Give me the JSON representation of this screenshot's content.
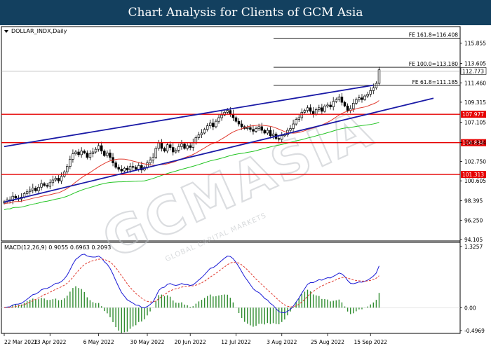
{
  "banner": {
    "title": "Chart Analysis for Clients of GCM Asia"
  },
  "watermark": {
    "text": "GCMASIA",
    "subtext": "GLOBAL CAPITAL MARKETS"
  },
  "chart_data": {
    "type": "candlestick",
    "symbol_label": "DOLLAR_INDX,Daily",
    "price_axis": {
      "range": [
        94.105,
        117.53
      ],
      "ticks": [
        "115.855",
        "113.605",
        "111.460",
        "109.315",
        "107.105",
        "104.834",
        "102.750",
        "100.605",
        "98.395",
        "96.250",
        "94.105"
      ]
    },
    "current_price": {
      "label": "112.773",
      "value": 112.773
    },
    "x_axis": {
      "ticks": [
        {
          "label": "22 Mar 2022",
          "index": 0
        },
        {
          "label": "13 Apr 2022",
          "index": 16
        },
        {
          "label": "6 May 2022",
          "index": 33
        },
        {
          "label": "30 May 2022",
          "index": 50
        },
        {
          "label": "20 Jun 2022",
          "index": 65
        },
        {
          "label": "12 Jul 2022",
          "index": 81
        },
        {
          "label": "3 Aug 2022",
          "index": 97
        },
        {
          "label": "25 Aug 2022",
          "index": 113
        },
        {
          "label": "15 Sep 2022",
          "index": 128
        }
      ]
    },
    "horizontal_levels": [
      {
        "label": "107.977",
        "value": 107.977,
        "color": "#e60000"
      },
      {
        "label": "104.834",
        "value": 104.834,
        "color": "#e60000"
      },
      {
        "label": "101.313",
        "value": 101.313,
        "color": "#e60000"
      }
    ],
    "fibonacci_levels": [
      {
        "label": "FE 161.8=116.408",
        "value": 116.408
      },
      {
        "label": "FE 100.0=113.180",
        "value": 113.18
      },
      {
        "label": "FE 61.8=111.185",
        "value": 111.185
      }
    ],
    "trendlines": [
      {
        "name": "upper-channel",
        "from": {
          "index": 0,
          "price": 104.4
        },
        "to": {
          "index": 129,
          "price": 111.2
        },
        "color": "#1a1aa6"
      },
      {
        "name": "lower-channel",
        "from": {
          "index": 0,
          "price": 98.25
        },
        "to": {
          "index": 150,
          "price": 109.75
        },
        "color": "#1a1aa6"
      }
    ],
    "closes": [
      98.3,
      98.5,
      98.4,
      98.9,
      98.7,
      98.6,
      98.8,
      99.2,
      99.4,
      99.6,
      99.8,
      99.5,
      99.9,
      100.3,
      100.1,
      100.0,
      100.4,
      100.7,
      100.9,
      100.6,
      101.1,
      101.6,
      102.2,
      103.0,
      103.6,
      103.8,
      103.5,
      103.9,
      103.7,
      103.2,
      103.6,
      103.8,
      104.1,
      104.5,
      103.9,
      103.4,
      103.7,
      103.2,
      102.6,
      102.1,
      101.9,
      101.7,
      102.0,
      101.8,
      102.2,
      102.1,
      101.9,
      102.3,
      101.8,
      102.1,
      102.6,
      102.9,
      103.2,
      104.2,
      104.8,
      104.2,
      103.9,
      104.6,
      104.3,
      103.8,
      104.0,
      104.4,
      104.7,
      104.2,
      104.5,
      104.3,
      104.8,
      105.4,
      105.7,
      105.9,
      106.3,
      106.7,
      107.0,
      106.6,
      107.2,
      107.6,
      107.9,
      108.2,
      108.4,
      108.0,
      107.6,
      107.2,
      106.9,
      106.6,
      106.4,
      106.5,
      106.3,
      106.1,
      106.4,
      106.6,
      106.2,
      105.9,
      106.2,
      105.6,
      105.8,
      105.3,
      105.2,
      105.6,
      105.7,
      106.2,
      106.4,
      106.9,
      107.4,
      107.6,
      108.2,
      108.4,
      108.7,
      108.3,
      108.0,
      108.5,
      108.7,
      108.3,
      108.9,
      109.0,
      108.8,
      109.4,
      109.6,
      109.9,
      109.3,
      108.9,
      108.4,
      108.6,
      109.2,
      109.6,
      109.8,
      109.6,
      110.0,
      110.2,
      110.6,
      110.9,
      111.4,
      112.9
    ],
    "moving_averages": [
      {
        "name": "red-ma",
        "color": "#e0392e",
        "period": 20
      },
      {
        "name": "green-ma",
        "color": "#22c422",
        "period": 50
      }
    ],
    "macd": {
      "label": "MACD(12,26,9) 0.9055 0.6963 0.2093",
      "parameters": [
        12,
        26,
        9
      ],
      "values": {
        "macd": 0.9055,
        "signal": 0.6963,
        "histogram": 0.2093
      },
      "axis_range": [
        -0.4969,
        1.3257
      ],
      "ticks": [
        "1.3257",
        "0.00",
        "-0.4969"
      ]
    }
  }
}
